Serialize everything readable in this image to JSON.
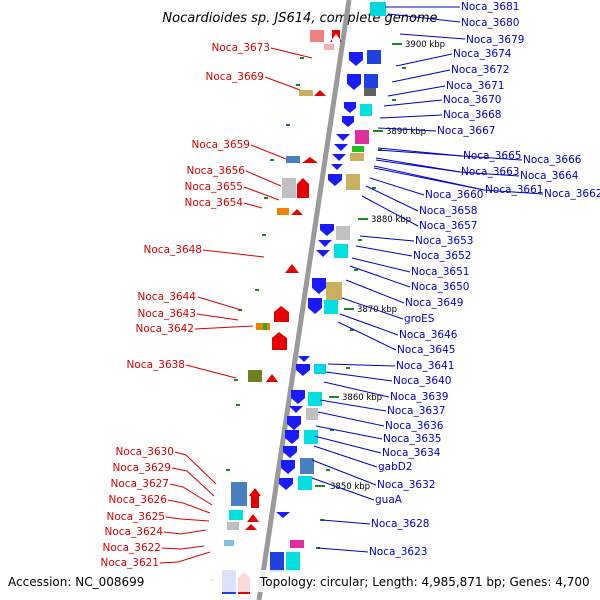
{
  "title": "Nocardioides sp. JS614, complete genome",
  "footer": {
    "accession": "Accession: NC_008699",
    "summary": "Topology: circular; Length: 4,985,871 bp; Genes: 4,700"
  },
  "colors": {
    "left_label": "#dd0000",
    "right_label": "#0000cc",
    "backbone": "#9a9a9a",
    "tick": "#1a8a1a"
  },
  "kbp_marks": [
    "3900 kbp",
    "3890 kbp",
    "3880 kbp",
    "3870 kbp",
    "3860 kbp",
    "3850 kbp"
  ],
  "left_labels": [
    "Noca_3673",
    "Noca_3669",
    "Noca_3659",
    "Noca_3656",
    "Noca_3655",
    "Noca_3654",
    "Noca_3648",
    "Noca_3644",
    "Noca_3643",
    "Noca_3642",
    "Noca_3638",
    "Noca_3630",
    "Noca_3629",
    "Noca_3627",
    "Noca_3626",
    "Noca_3625",
    "Noca_3624",
    "Noca_3622",
    "Noca_3621"
  ],
  "right_labels": [
    "Noca_3681",
    "Noca_3680",
    "Noca_3679",
    "Noca_3674",
    "Noca_3672",
    "Noca_3671",
    "Noca_3670",
    "Noca_3668",
    "Noca_3667",
    "Noca_3665",
    "Noca_3666",
    "Noca_3663",
    "Noca_3664",
    "Noca_3661",
    "Noca_3662",
    "Noca_3660",
    "Noca_3658",
    "Noca_3657",
    "Noca_3653",
    "Noca_3652",
    "Noca_3651",
    "Noca_3650",
    "Noca_3649",
    "groES",
    "Noca_3646",
    "Noca_3645",
    "Noca_3641",
    "Noca_3640",
    "Noca_3639",
    "Noca_3637",
    "Noca_3636",
    "Noca_3635",
    "Noca_3634",
    "gabD2",
    "Noca_3632",
    "guaA",
    "Noca_3628",
    "Noca_3623"
  ]
}
